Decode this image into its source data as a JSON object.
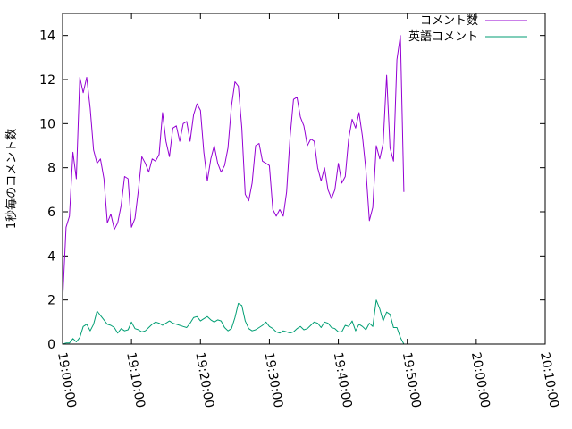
{
  "chart_data": {
    "type": "line",
    "ylabel": "1秒毎のコメント数",
    "xlabel": "",
    "xlim": [
      "19:00:00",
      "20:10:00"
    ],
    "ylim": [
      0,
      15
    ],
    "x_ticks": [
      "19:00:00",
      "19:10:00",
      "19:20:00",
      "19:30:00",
      "19:40:00",
      "19:50:00",
      "20:00:00",
      "20:10:00"
    ],
    "y_ticks": [
      0,
      2,
      4,
      6,
      8,
      10,
      12,
      14
    ],
    "grid": false,
    "legend_position": "top-right",
    "x_step": "00:00:30",
    "x_start": "19:00:00",
    "series": [
      {
        "name": "コメント数",
        "color": "#9400d3",
        "values": [
          1.9,
          5.3,
          5.8,
          8.7,
          7.5,
          12.1,
          11.4,
          12.1,
          10.7,
          8.8,
          8.2,
          8.4,
          7.5,
          5.5,
          5.9,
          5.2,
          5.5,
          6.3,
          7.6,
          7.5,
          5.3,
          5.7,
          7.0,
          8.5,
          8.2,
          7.8,
          8.4,
          8.3,
          8.6,
          10.5,
          9.2,
          8.5,
          9.8,
          9.9,
          9.2,
          10.0,
          10.1,
          9.2,
          10.4,
          10.9,
          10.6,
          8.7,
          7.4,
          8.4,
          9.0,
          8.2,
          7.8,
          8.1,
          8.9,
          10.8,
          11.9,
          11.7,
          9.8,
          6.8,
          6.5,
          7.3,
          9.0,
          9.1,
          8.3,
          8.2,
          8.1,
          6.1,
          5.8,
          6.1,
          5.8,
          6.9,
          9.4,
          11.1,
          11.2,
          10.3,
          9.9,
          9.0,
          9.3,
          9.2,
          8.0,
          7.4,
          8.0,
          7.0,
          6.6,
          7.0,
          8.2,
          7.3,
          7.6,
          9.3,
          10.2,
          9.8,
          10.5,
          9.4,
          7.9,
          5.6,
          6.2,
          9.0,
          8.4,
          9.1,
          12.2,
          8.9,
          8.3,
          12.9,
          14.0,
          6.9
        ]
      },
      {
        "name": "英語コメント",
        "color": "#009e73",
        "values": [
          0.0,
          0.05,
          0.05,
          0.25,
          0.1,
          0.3,
          0.8,
          0.9,
          0.6,
          0.9,
          1.5,
          1.3,
          1.1,
          0.9,
          0.85,
          0.75,
          0.5,
          0.7,
          0.6,
          0.65,
          1.0,
          0.7,
          0.65,
          0.55,
          0.6,
          0.75,
          0.9,
          1.0,
          0.95,
          0.85,
          0.95,
          1.05,
          0.95,
          0.9,
          0.85,
          0.8,
          0.75,
          0.95,
          1.2,
          1.25,
          1.05,
          1.15,
          1.25,
          1.1,
          1.0,
          1.1,
          1.05,
          0.75,
          0.6,
          0.7,
          1.2,
          1.85,
          1.75,
          1.05,
          0.7,
          0.6,
          0.65,
          0.75,
          0.85,
          1.0,
          0.8,
          0.7,
          0.55,
          0.5,
          0.6,
          0.55,
          0.5,
          0.55,
          0.7,
          0.8,
          0.65,
          0.7,
          0.85,
          1.0,
          0.95,
          0.75,
          1.0,
          0.95,
          0.75,
          0.7,
          0.55,
          0.55,
          0.85,
          0.8,
          1.05,
          0.6,
          0.9,
          0.8,
          0.65,
          0.95,
          0.8,
          2.0,
          1.6,
          1.05,
          1.45,
          1.35,
          0.75,
          0.75,
          0.3,
          0.0
        ]
      }
    ]
  }
}
